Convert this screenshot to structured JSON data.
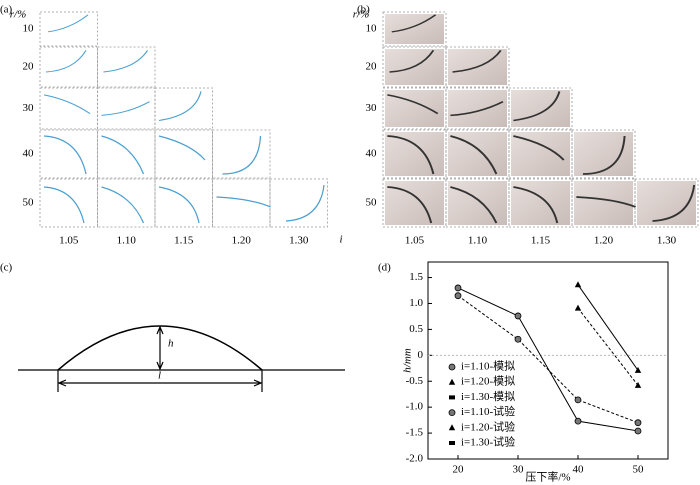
{
  "panels": {
    "a": {
      "label": "(a)",
      "row_axis_label": "r/%",
      "rows": [
        10,
        20,
        30,
        40,
        50
      ],
      "columns": [
        "1.05",
        "1.10",
        "1.15",
        "1.20",
        "1.30"
      ],
      "column_axis_label": "i"
    },
    "b": {
      "label": "(b)",
      "row_axis_label": "r/%",
      "rows": [
        10,
        20,
        30,
        40,
        50
      ],
      "columns": [
        "1.05",
        "1.10",
        "1.15",
        "1.20",
        "1.30"
      ],
      "column_axis_label": "i"
    },
    "c": {
      "label": "(c)",
      "height_label": "h",
      "length_label": "l"
    }
  },
  "chart_data": {
    "type": "line",
    "panel_label": "(d)",
    "x_label": "压下率/%",
    "y_label": "h/mm",
    "x": [
      20,
      30,
      40,
      50
    ],
    "xlim": [
      15,
      55
    ],
    "xticks": [
      20,
      30,
      40,
      50
    ],
    "ylim": [
      -2,
      1.8
    ],
    "yticks": [
      1.5,
      {
        "value": 1,
        "label": "1.0"
      },
      0.5,
      0,
      -0.5,
      {
        "value": -1,
        "label": "-1.0"
      },
      -1.5,
      {
        "value": -2,
        "label": "-2.0"
      }
    ],
    "zero_line": true,
    "series": [
      {
        "name": "i=1.10-模拟",
        "color": "#000000",
        "line_style": "solid",
        "marker": "circle",
        "values": [
          1.3,
          0.76,
          -1.27,
          -1.46
        ]
      },
      {
        "name": "i=1.20-模拟",
        "color": "#000000",
        "line_style": "solid",
        "marker": "triangle",
        "values": [
          null,
          null,
          1.36,
          -0.29
        ]
      },
      {
        "name": "i=1.30-模拟",
        "color": "#000000",
        "line_style": "solid",
        "marker": "square",
        "values": [
          null,
          null,
          null,
          null
        ]
      },
      {
        "name": "i=1.10-试验",
        "color": "#000000",
        "line_style": "dashed",
        "marker": "circle",
        "values": [
          1.15,
          0.31,
          -0.86,
          -1.3
        ]
      },
      {
        "name": "i=1.20-试验",
        "color": "#000000",
        "line_style": "dashed",
        "marker": "triangle",
        "values": [
          null,
          null,
          0.91,
          -0.58
        ]
      },
      {
        "name": "i=1.30-试验",
        "color": "#000000",
        "line_style": "dashed",
        "marker": "square",
        "values": [
          null,
          null,
          null,
          null
        ]
      }
    ]
  }
}
